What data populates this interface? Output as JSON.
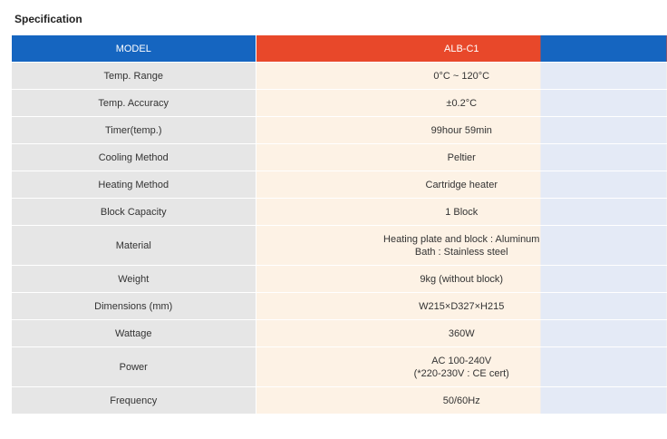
{
  "page": {
    "title": "Specification"
  },
  "table": {
    "header": {
      "label": "MODEL",
      "value": "ALB-C1"
    },
    "rows": [
      {
        "label": "Temp. Range",
        "lines": [
          "0°C ~ 120°C"
        ]
      },
      {
        "label": "Temp. Accuracy",
        "lines": [
          "±0.2°C"
        ]
      },
      {
        "label": "Timer(temp.)",
        "lines": [
          "99hour 59min"
        ]
      },
      {
        "label": "Cooling Method",
        "lines": [
          "Peltier"
        ]
      },
      {
        "label": "Heating Method",
        "lines": [
          "Cartridge heater"
        ]
      },
      {
        "label": "Block Capacity",
        "lines": [
          "1 Block"
        ]
      },
      {
        "label": "Material",
        "lines": [
          "Heating plate and block : Aluminum",
          "Bath : Stainless steel"
        ]
      },
      {
        "label": "Weight",
        "lines": [
          "9kg (without block)"
        ]
      },
      {
        "label": "Dimensions (mm)",
        "lines": [
          "W215×D327×H215"
        ]
      },
      {
        "label": "Wattage",
        "lines": [
          "360W"
        ]
      },
      {
        "label": "Power",
        "lines": [
          "AC 100-240V",
          "(*220-230V : CE cert)"
        ]
      },
      {
        "label": "Frequency",
        "lines": [
          "50/60Hz"
        ]
      }
    ]
  },
  "colors": {
    "header_blue": "#1565c0",
    "header_orange": "#e8482a",
    "label_bg": "#e6e6e6",
    "value_bg_warm": "#fdf2e5",
    "value_bg_cool": "#e4eaf6"
  }
}
